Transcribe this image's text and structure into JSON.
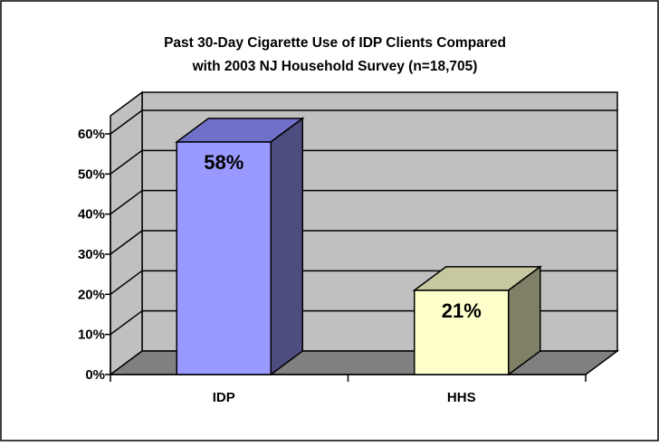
{
  "chart_data": {
    "type": "bar",
    "title_lines": [
      "Past 30-Day Cigarette Use of IDP Clients Compared",
      "with 2003 NJ Household Survey (n=18,705)"
    ],
    "categories": [
      "IDP",
      "HHS"
    ],
    "values": [
      58,
      21
    ],
    "data_labels": [
      "58%",
      "21%"
    ],
    "yticks": [
      "0%",
      "10%",
      "20%",
      "30%",
      "40%",
      "50%",
      "60%"
    ],
    "ylim": [
      0,
      60
    ],
    "grid": true,
    "legend": "none",
    "colors": {
      "IDP": {
        "front": "#9999ff",
        "top": "#7070c8",
        "side": "#4d4d80"
      },
      "HHS": {
        "front": "#ffffcc",
        "top": "#c8c8a0",
        "side": "#808066"
      },
      "wall": "#c0c0c0",
      "floor": "#808080"
    }
  }
}
